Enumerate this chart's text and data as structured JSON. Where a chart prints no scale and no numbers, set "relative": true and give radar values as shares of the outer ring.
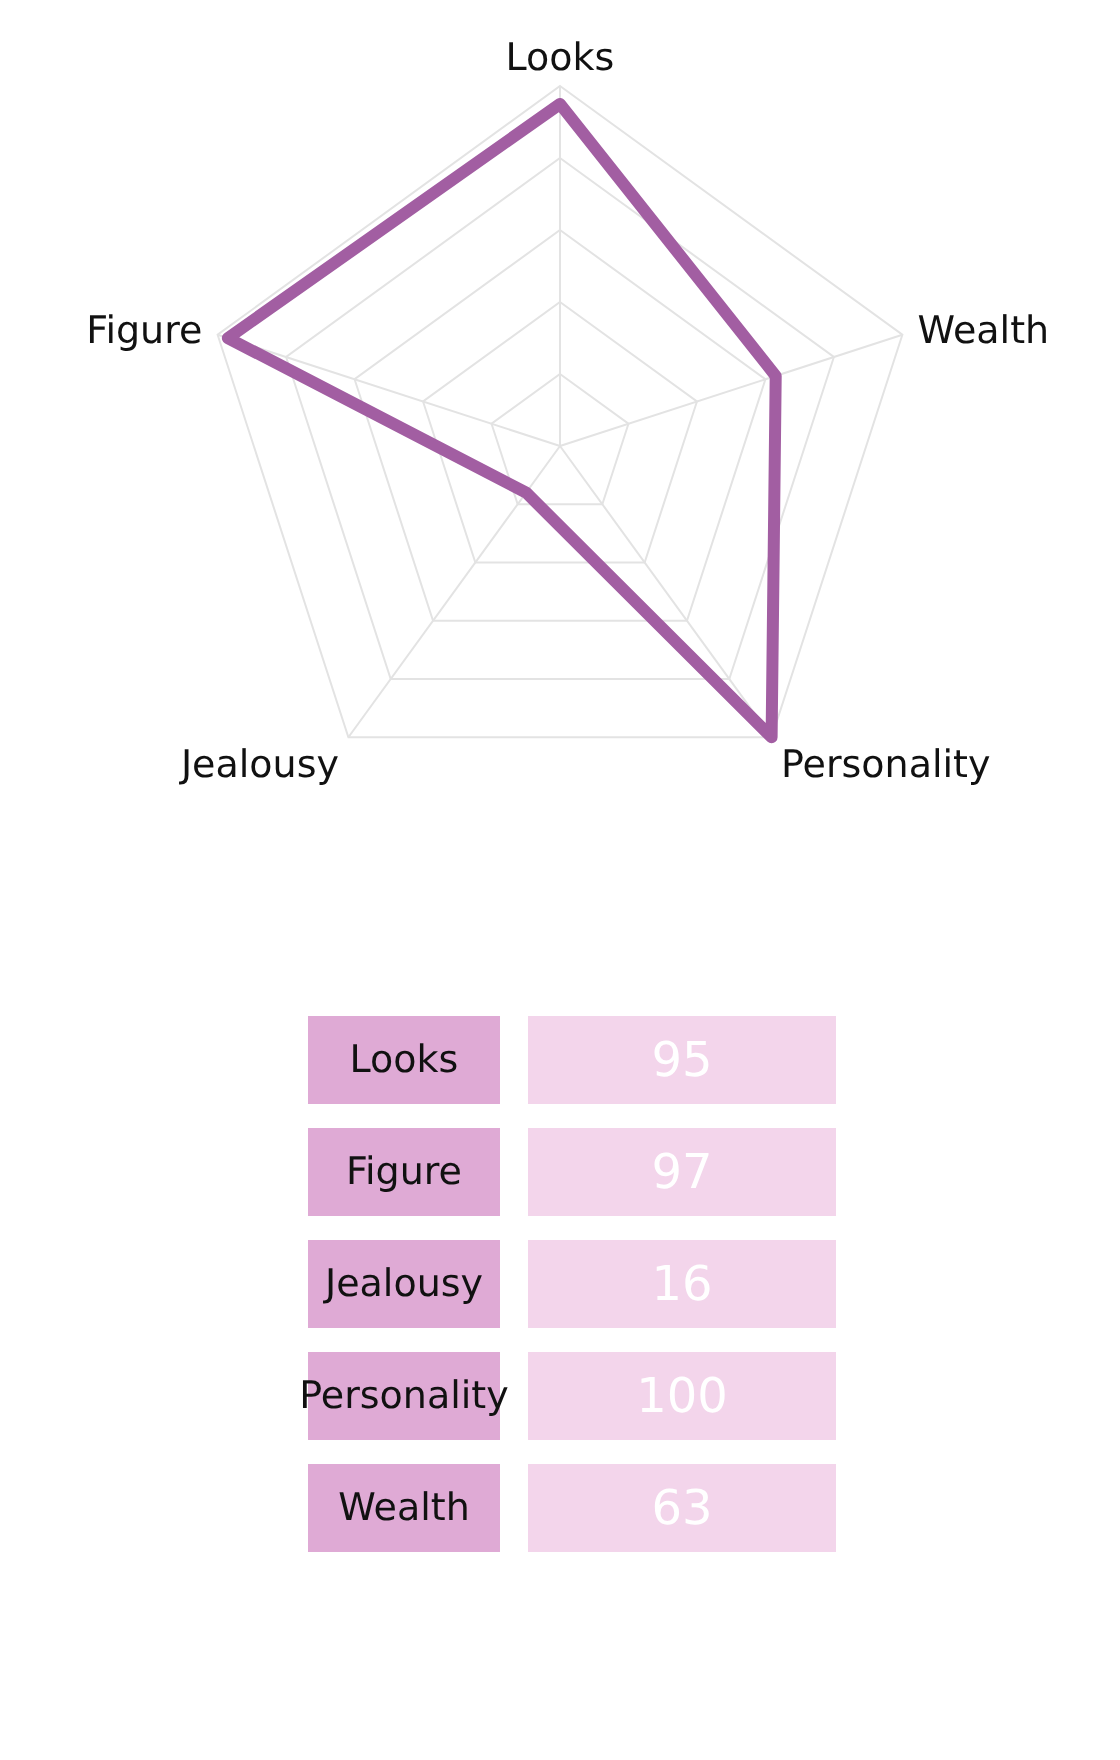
{
  "chart_data": [
    {
      "type": "radar",
      "categories": [
        "Looks",
        "Wealth",
        "Personality",
        "Jealousy",
        "Figure"
      ],
      "series": [
        {
          "color": "#a25ea2",
          "values": [
            0.95,
            0.63,
            1,
            0.16,
            0.97
          ]
        }
      ],
      "relative": true,
      "grid": true
    },
    {
      "type": "other",
      "categories": [
        "Looks",
        "Figure",
        "Jealousy",
        "Personality",
        "Wealth"
      ],
      "values": [
        95,
        97,
        16,
        100,
        63
      ],
      "data_labels": true
    }
  ]
}
